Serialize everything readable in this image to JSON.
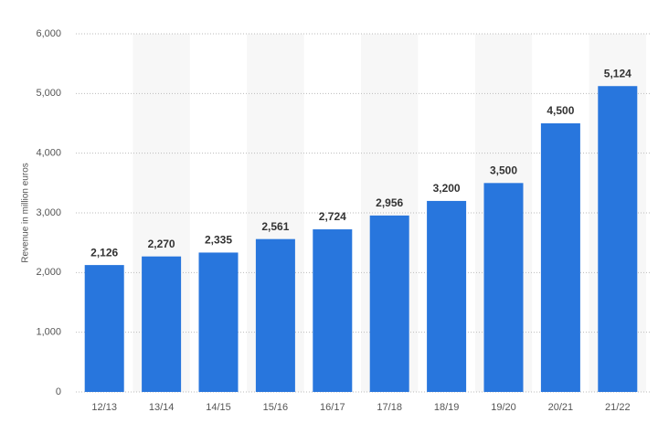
{
  "chart_data": {
    "type": "bar",
    "y_label": "Revenue in million euros",
    "categories": [
      "12/13",
      "13/14",
      "14/15",
      "15/16",
      "16/17",
      "17/18",
      "18/19",
      "19/20",
      "20/21",
      "21/22"
    ],
    "values": [
      2126,
      2270,
      2335,
      2561,
      2724,
      2956,
      3200,
      3500,
      4500,
      5124
    ],
    "value_labels": [
      "2,126",
      "2,270",
      "2,335",
      "2,561",
      "2,724",
      "2,956",
      "3,200",
      "3,500",
      "4,500",
      "5,124"
    ],
    "color": "#2876dd",
    "ylim": [
      0,
      6000
    ],
    "yticks": [
      0,
      {
        "value": 1000,
        "label": "1,000"
      },
      {
        "value": 2000,
        "label": "2,000"
      },
      {
        "value": 3000,
        "label": "3,000"
      },
      {
        "value": 4000,
        "label": "4,000"
      },
      {
        "value": 5000,
        "label": "5,000"
      },
      {
        "value": 6000,
        "label": "6,000"
      }
    ],
    "grid": true
  }
}
